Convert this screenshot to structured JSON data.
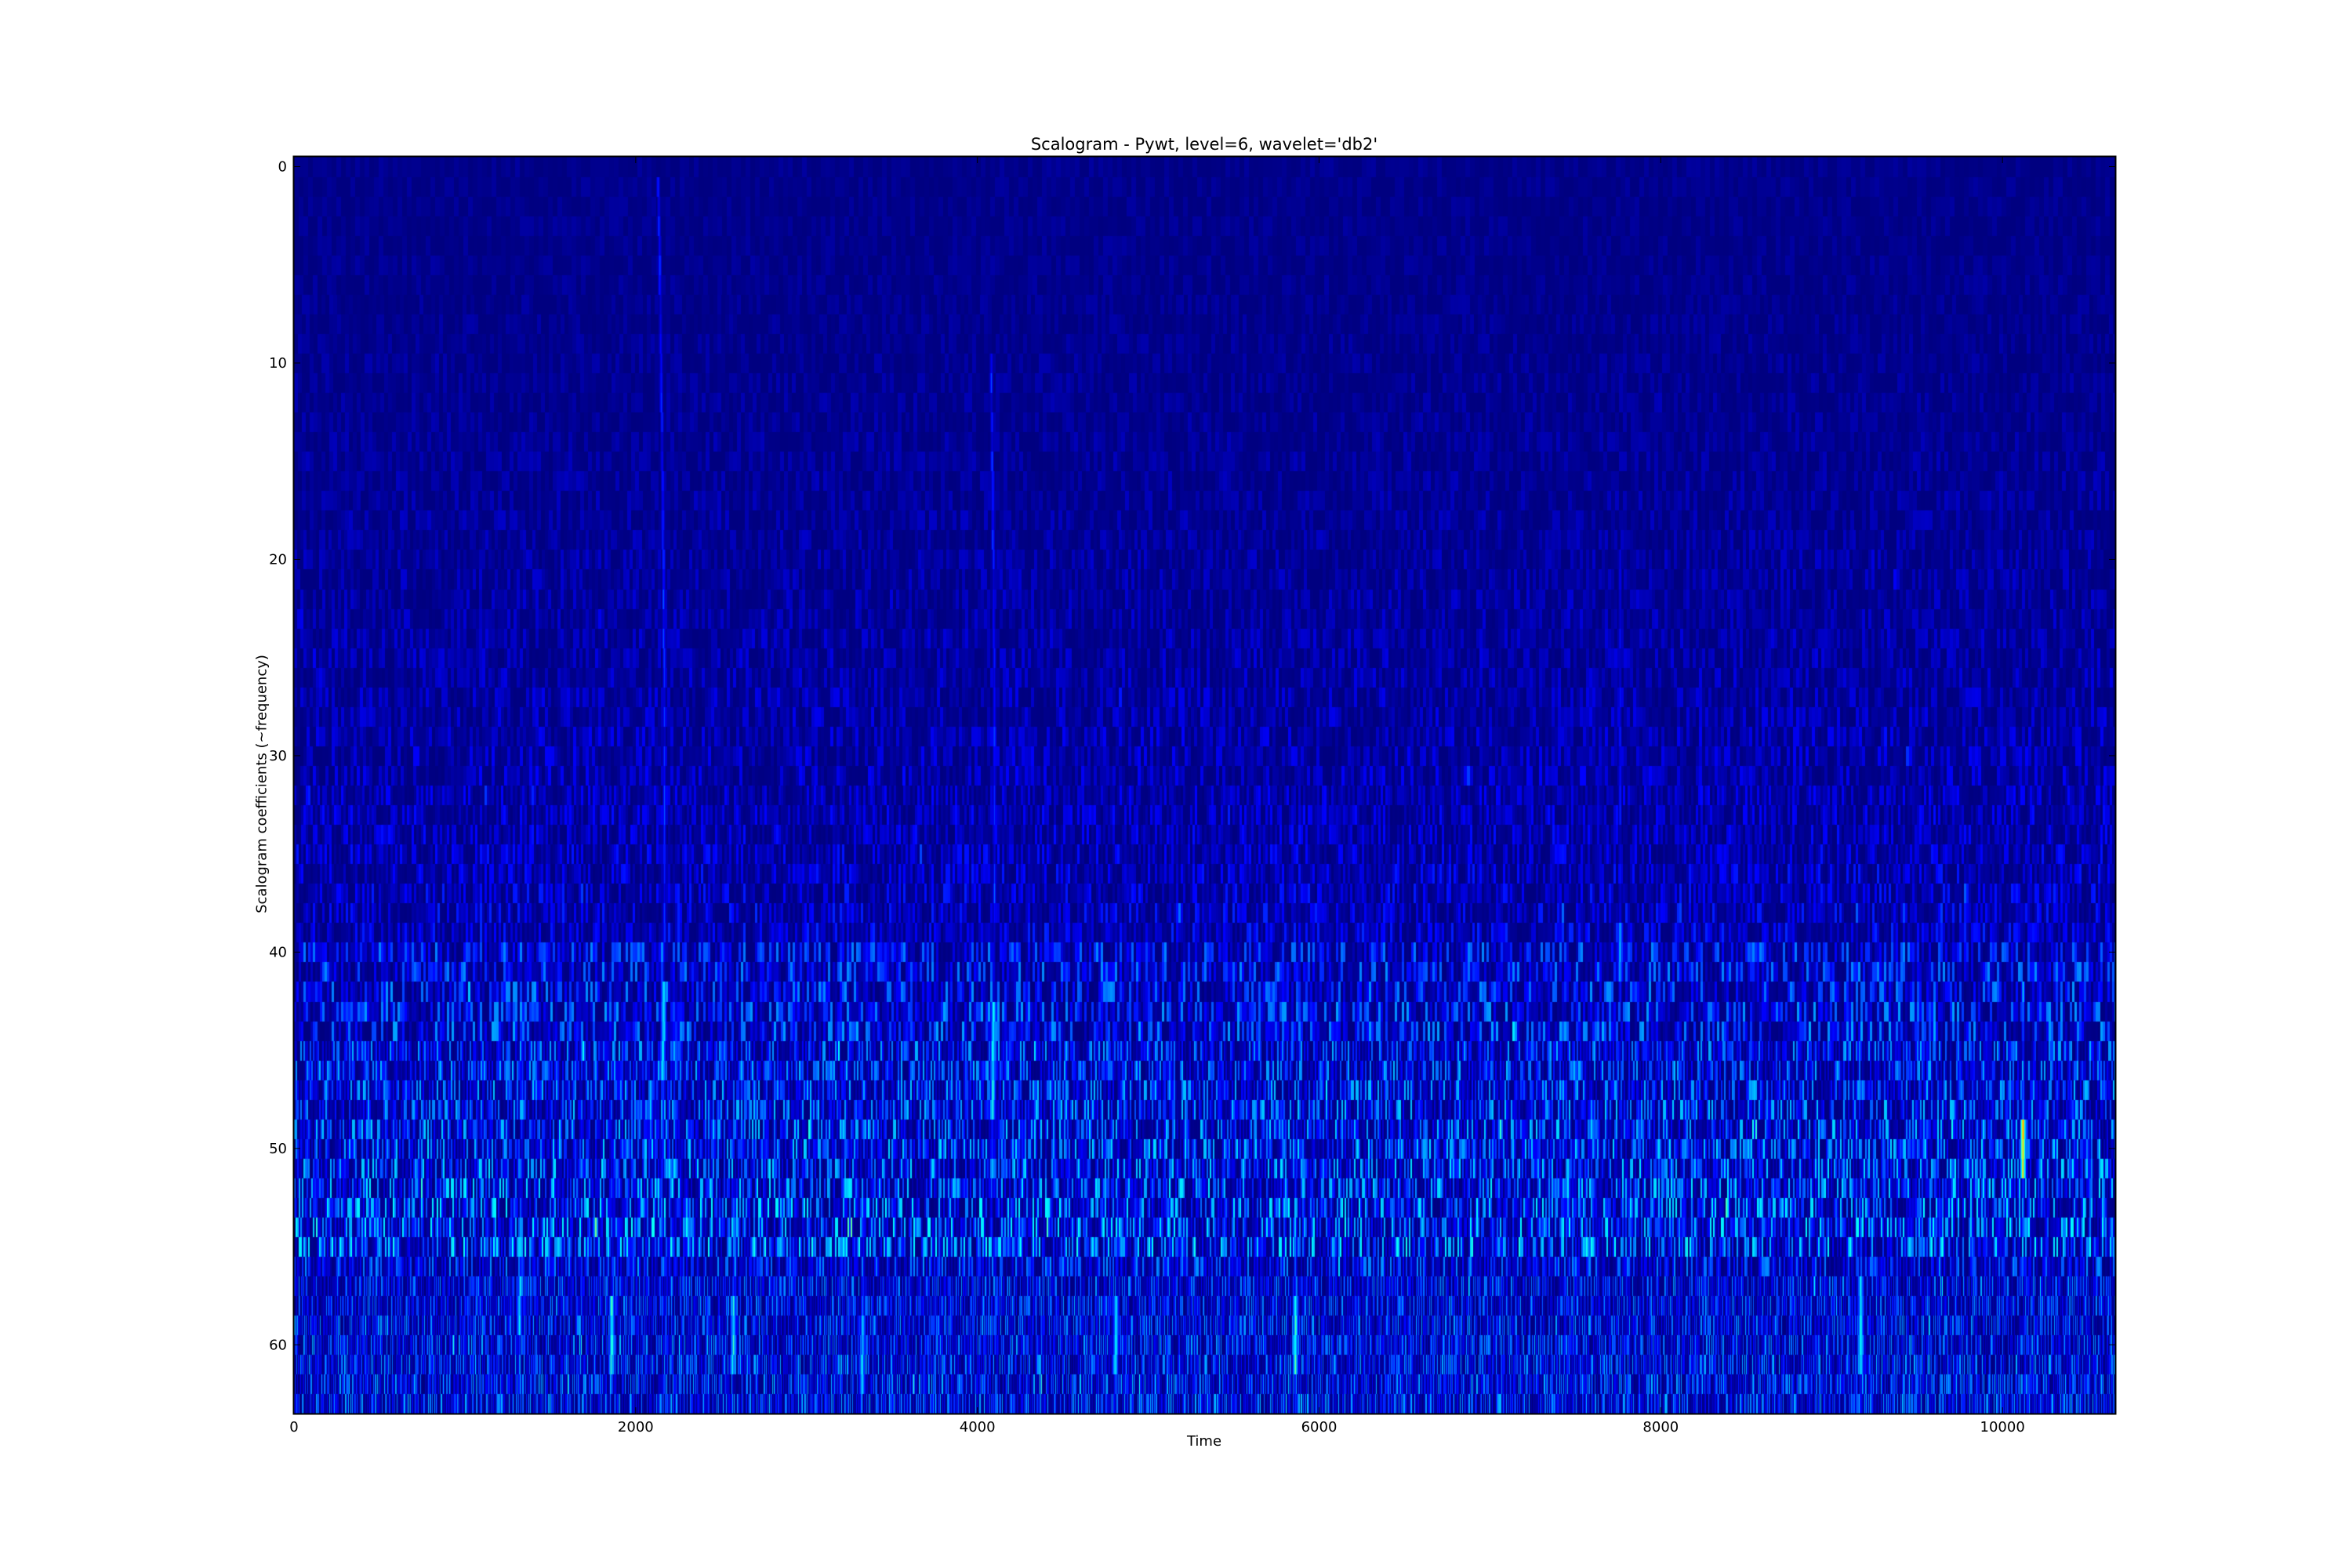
{
  "chart_data": {
    "type": "heatmap",
    "title": "Scalogram - Pywt, level=6, wavelet='db2'",
    "xlabel": "Time",
    "ylabel": "Scalogram coefficients (~frequency)",
    "colormap": "jet",
    "xlim": [
      0,
      10660
    ],
    "ylim": [
      63.5,
      -0.5
    ],
    "y_inverted": true,
    "rows": 64,
    "xticks": [
      0,
      2000,
      4000,
      6000,
      8000,
      10000
    ],
    "yticks": [
      0,
      10,
      20,
      30,
      40,
      50,
      60
    ],
    "grid": false,
    "legend": "none",
    "background_level": 0.05,
    "highlights": [
      {
        "t": 2130,
        "rows": [
          1,
          55
        ],
        "peak_rows": [
          42,
          46
        ],
        "level": 0.45
      },
      {
        "t": 4060,
        "rows": [
          10,
          55
        ],
        "peak_rows": [
          43,
          48
        ],
        "level": 0.45
      },
      {
        "t": 1310,
        "rows": [
          43,
          62
        ],
        "peak_rows": [
          57,
          59
        ],
        "level": 0.4
      },
      {
        "t": 1850,
        "rows": [
          50,
          63
        ],
        "peak_rows": [
          58,
          61
        ],
        "level": 0.5
      },
      {
        "t": 2560,
        "rows": [
          52,
          63
        ],
        "peak_rows": [
          58,
          61
        ],
        "level": 0.45
      },
      {
        "t": 3320,
        "rows": [
          55,
          63
        ],
        "peak_rows": [
          59,
          62
        ],
        "level": 0.4
      },
      {
        "t": 4800,
        "rows": [
          45,
          63
        ],
        "peak_rows": [
          58,
          61
        ],
        "level": 0.45
      },
      {
        "t": 5860,
        "rows": [
          50,
          63
        ],
        "peak_rows": [
          58,
          61
        ],
        "level": 0.5
      },
      {
        "t": 7760,
        "rows": [
          20,
          42
        ],
        "peak_rows": [
          39,
          41
        ],
        "level": 0.35
      },
      {
        "t": 9170,
        "rows": [
          50,
          63
        ],
        "peak_rows": [
          57,
          61
        ],
        "level": 0.45
      },
      {
        "t": 10120,
        "rows": [
          42,
          53
        ],
        "peak_rows": [
          49,
          51
        ],
        "level": 0.8
      }
    ],
    "colors": {
      "low": "#00007f",
      "frame": "#000000"
    }
  }
}
